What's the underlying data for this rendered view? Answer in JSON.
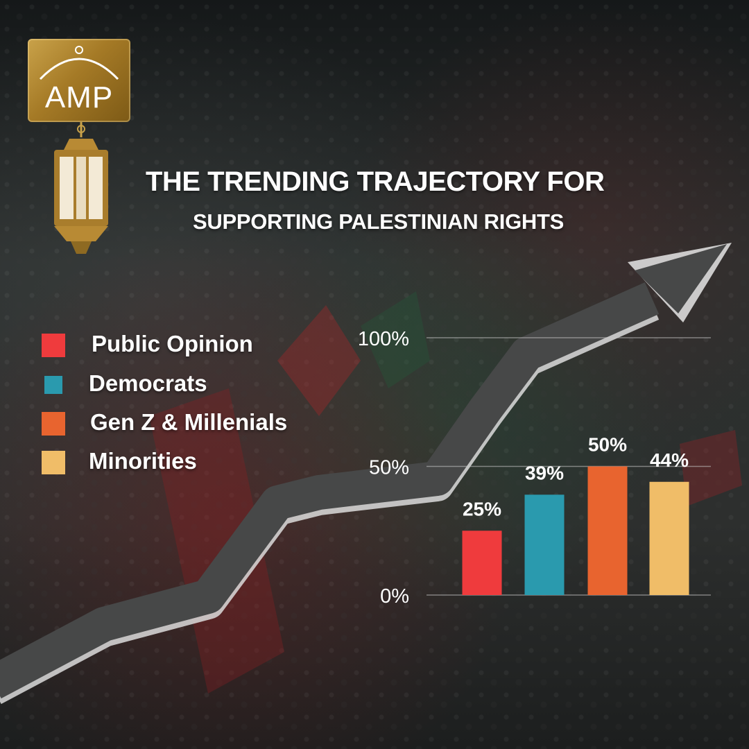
{
  "brand": {
    "logo_text": "AMP"
  },
  "title_line1": "THE TRENDING TRAJECTORY FOR",
  "title_line2": "SUPPORTING PALESTINIAN RIGHTS",
  "legend": [
    {
      "label": "Public Opinion",
      "color": "#ef3b3d"
    },
    {
      "label": "Democrats",
      "color": "#2a9aae"
    },
    {
      "label": "Gen Z & Millenials",
      "color": "#e8642f"
    },
    {
      "label": "Minorities",
      "color": "#f0bd68"
    }
  ],
  "chart_data": {
    "type": "bar",
    "categories": [
      "Public Opinion",
      "Democrats",
      "Gen Z & Millenials",
      "Minorities"
    ],
    "values": [
      25,
      39,
      50,
      44
    ],
    "value_labels": [
      "25%",
      "39%",
      "50%",
      "44%"
    ],
    "colors": [
      "#ef3b3d",
      "#2a9aae",
      "#e8642f",
      "#f0bd68"
    ],
    "ylim": [
      0,
      100
    ],
    "y_ticks": [
      0,
      50,
      100
    ],
    "y_tick_labels": [
      "0%",
      "50%",
      "100%"
    ],
    "grid": true,
    "legend_position": "left"
  }
}
